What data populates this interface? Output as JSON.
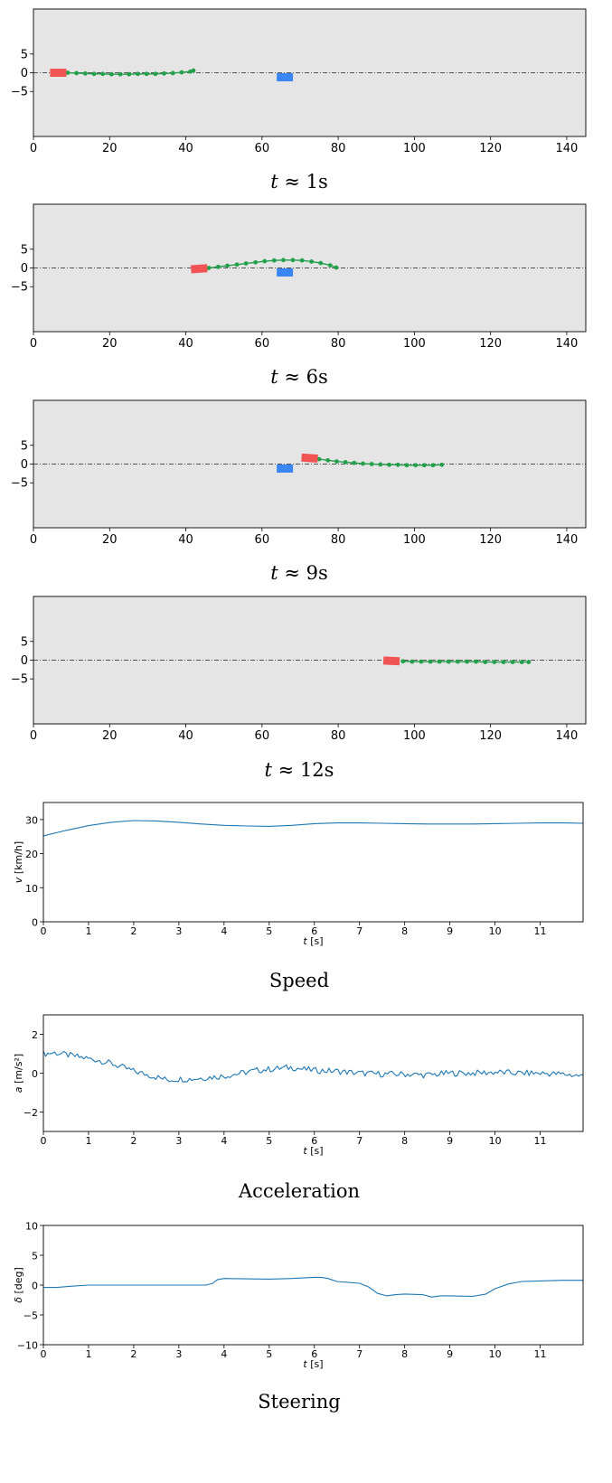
{
  "chart_data": [
    {
      "type": "scatter",
      "caption": "t ≈ 1s",
      "caption_var": "t",
      "caption_rest": " ≈ 1s",
      "xlim": [
        0,
        145
      ],
      "ylim": [
        -17,
        17
      ],
      "xticks": [
        0,
        20,
        40,
        60,
        80,
        100,
        120,
        140
      ],
      "yticks": [
        5,
        0,
        -5
      ],
      "ytick_labels": [
        "5",
        "0",
        "−5"
      ],
      "background_color": "#e5e5e5",
      "centerline_y": 0,
      "ego_vehicle": {
        "x": 6.5,
        "y": 0,
        "color": "#f05454"
      },
      "obstacle_vehicle": {
        "x": 66,
        "y": -1.2,
        "color": "#3a86f5"
      },
      "trajectory_color": "#22a04b",
      "trajectory": [
        [
          9,
          0
        ],
        [
          11.3,
          -0.1
        ],
        [
          13.6,
          -0.2
        ],
        [
          15.9,
          -0.3
        ],
        [
          18.2,
          -0.3
        ],
        [
          20.5,
          -0.4
        ],
        [
          22.8,
          -0.4
        ],
        [
          25.1,
          -0.4
        ],
        [
          27.4,
          -0.3
        ],
        [
          29.7,
          -0.3
        ],
        [
          32,
          -0.3
        ],
        [
          34.3,
          -0.2
        ],
        [
          36.6,
          -0.1
        ],
        [
          38.9,
          0.1
        ],
        [
          41.2,
          0.3
        ],
        [
          42,
          0.6
        ]
      ]
    },
    {
      "type": "scatter",
      "caption": "t ≈ 6s",
      "caption_var": "t",
      "caption_rest": " ≈ 6s",
      "xlim": [
        0,
        145
      ],
      "ylim": [
        -17,
        17
      ],
      "xticks": [
        0,
        20,
        40,
        60,
        80,
        100,
        120,
        140
      ],
      "yticks": [
        5,
        0,
        -5
      ],
      "ytick_labels": [
        "5",
        "0",
        "−5"
      ],
      "background_color": "#e5e5e5",
      "centerline_y": 0,
      "ego_vehicle": {
        "x": 43.5,
        "y": -0.2,
        "color": "#f05454"
      },
      "obstacle_vehicle": {
        "x": 66,
        "y": -1.2,
        "color": "#3a86f5"
      },
      "trajectory_color": "#22a04b",
      "trajectory": [
        [
          46,
          0
        ],
        [
          48.5,
          0.3
        ],
        [
          50.9,
          0.6
        ],
        [
          53.4,
          0.9
        ],
        [
          55.8,
          1.2
        ],
        [
          58.3,
          1.5
        ],
        [
          60.7,
          1.8
        ],
        [
          63.2,
          2
        ],
        [
          65.6,
          2.1
        ],
        [
          68.1,
          2.1
        ],
        [
          70.5,
          2
        ],
        [
          73,
          1.7
        ],
        [
          75.4,
          1.3
        ],
        [
          77.9,
          0.7
        ],
        [
          79.5,
          0.1
        ]
      ]
    },
    {
      "type": "scatter",
      "caption": "t ≈ 9s",
      "caption_var": "t",
      "caption_rest": " ≈ 9s",
      "xlim": [
        0,
        145
      ],
      "ylim": [
        -17,
        17
      ],
      "xticks": [
        0,
        20,
        40,
        60,
        80,
        100,
        120,
        140
      ],
      "yticks": [
        5,
        0,
        -5
      ],
      "ytick_labels": [
        "5",
        "0",
        "−5"
      ],
      "background_color": "#e5e5e5",
      "centerline_y": 0,
      "ego_vehicle": {
        "x": 72.5,
        "y": 1.6,
        "color": "#f05454"
      },
      "obstacle_vehicle": {
        "x": 66,
        "y": -1.2,
        "color": "#3a86f5"
      },
      "trajectory_color": "#22a04b",
      "trajectory": [
        [
          75,
          1.3
        ],
        [
          77.3,
          1
        ],
        [
          79.6,
          0.7
        ],
        [
          81.9,
          0.5
        ],
        [
          84.2,
          0.3
        ],
        [
          86.5,
          0.1
        ],
        [
          88.8,
          0
        ],
        [
          91.1,
          -0.1
        ],
        [
          93.4,
          -0.2
        ],
        [
          95.7,
          -0.2
        ],
        [
          98,
          -0.3
        ],
        [
          100.3,
          -0.3
        ],
        [
          102.6,
          -0.3
        ],
        [
          104.9,
          -0.3
        ],
        [
          107.2,
          -0.2
        ]
      ]
    },
    {
      "type": "scatter",
      "caption": "t ≈ 12s",
      "caption_var": "t",
      "caption_rest": " ≈ 12s",
      "xlim": [
        0,
        145
      ],
      "ylim": [
        -17,
        17
      ],
      "xticks": [
        0,
        20,
        40,
        60,
        80,
        100,
        120,
        140
      ],
      "yticks": [
        5,
        0,
        -5
      ],
      "ytick_labels": [
        "5",
        "0",
        "−5"
      ],
      "background_color": "#e5e5e5",
      "centerline_y": 0,
      "ego_vehicle": {
        "x": 94,
        "y": -0.2,
        "color": "#f05454"
      },
      "obstacle_vehicle": null,
      "trajectory_color": "#22a04b",
      "trajectory": [
        [
          97,
          -0.3
        ],
        [
          99.4,
          -0.4
        ],
        [
          101.8,
          -0.4
        ],
        [
          104.2,
          -0.4
        ],
        [
          106.6,
          -0.4
        ],
        [
          109,
          -0.4
        ],
        [
          111.4,
          -0.4
        ],
        [
          113.8,
          -0.4
        ],
        [
          116.2,
          -0.4
        ],
        [
          118.6,
          -0.5
        ],
        [
          121,
          -0.5
        ],
        [
          123.4,
          -0.5
        ],
        [
          125.8,
          -0.5
        ],
        [
          128.2,
          -0.5
        ],
        [
          130,
          -0.5
        ]
      ]
    },
    {
      "type": "line",
      "caption": "Speed",
      "xlabel_var": "t",
      "xlabel_rest": " [s]",
      "ylabel_var": "v",
      "ylabel_rest": " [km/h]",
      "xlim": [
        0,
        11.95
      ],
      "ylim": [
        0,
        35
      ],
      "xticks": [
        0,
        1,
        2,
        3,
        4,
        5,
        6,
        7,
        8,
        9,
        10,
        11
      ],
      "yticks": [
        0,
        10,
        20,
        30
      ],
      "ytick_labels": [
        "0",
        "10",
        "20",
        "30"
      ],
      "line_color": "#1f77b4",
      "noise": 0,
      "x": [
        0,
        0.5,
        1,
        1.5,
        2,
        2.5,
        3,
        3.5,
        4,
        4.5,
        5,
        5.5,
        6,
        6.5,
        7,
        7.5,
        8,
        8.5,
        9,
        9.5,
        10,
        10.5,
        11,
        11.5,
        11.95
      ],
      "y": [
        25.2,
        26.8,
        28.2,
        29.2,
        29.7,
        29.6,
        29.2,
        28.7,
        28.3,
        28.1,
        28.0,
        28.3,
        28.8,
        29.0,
        29.0,
        28.9,
        28.8,
        28.7,
        28.7,
        28.7,
        28.8,
        28.9,
        29.0,
        29.0,
        28.9
      ]
    },
    {
      "type": "line",
      "caption": "Acceleration",
      "xlabel_var": "t",
      "xlabel_rest": " [s]",
      "ylabel_var": "a",
      "ylabel_rest": " [m/s²]",
      "xlim": [
        0,
        11.95
      ],
      "ylim": [
        -3,
        3
      ],
      "xticks": [
        0,
        1,
        2,
        3,
        4,
        5,
        6,
        7,
        8,
        9,
        10,
        11
      ],
      "yticks": [
        2,
        0,
        -2
      ],
      "ytick_labels": [
        "2",
        "0",
        "−2"
      ],
      "line_color": "#1f77b4",
      "noise": 0.16,
      "x": [
        0,
        0.25,
        0.5,
        0.75,
        1,
        1.25,
        1.5,
        1.75,
        2,
        2.25,
        2.5,
        2.75,
        3,
        3.25,
        3.5,
        3.75,
        4,
        4.25,
        4.5,
        4.75,
        5,
        5.25,
        5.5,
        5.75,
        6,
        6.5,
        7,
        7.5,
        8,
        8.5,
        9,
        9.5,
        10,
        10.5,
        11,
        11.5,
        11.95
      ],
      "y": [
        1.0,
        1.05,
        0.95,
        0.85,
        0.75,
        0.65,
        0.5,
        0.3,
        0.1,
        -0.05,
        -0.2,
        -0.35,
        -0.3,
        -0.3,
        -0.25,
        -0.2,
        -0.15,
        -0.05,
        0.05,
        0.15,
        0.2,
        0.25,
        0.3,
        0.2,
        0.15,
        0.1,
        0.0,
        -0.05,
        -0.05,
        -0.1,
        0.0,
        0.0,
        0.05,
        0.0,
        0.0,
        -0.05,
        -0.15
      ]
    },
    {
      "type": "line",
      "caption": "Steering",
      "xlabel_var": "t",
      "xlabel_rest": " [s]",
      "ylabel_var": "δ",
      "ylabel_rest": " [deg]",
      "xlim": [
        0,
        11.95
      ],
      "ylim": [
        -10,
        10
      ],
      "xticks": [
        0,
        1,
        2,
        3,
        4,
        5,
        6,
        7,
        8,
        9,
        10,
        11
      ],
      "yticks": [
        10,
        5,
        0,
        -5,
        -10
      ],
      "ytick_labels": [
        "10",
        "5",
        "0",
        "−5",
        "−10"
      ],
      "line_color": "#1f77b4",
      "noise": 0,
      "x": [
        0,
        0.3,
        0.6,
        1,
        2,
        3,
        3.6,
        3.75,
        3.85,
        4.0,
        5,
        5.5,
        6,
        6.15,
        6.3,
        6.5,
        7,
        7.2,
        7.4,
        7.6,
        7.8,
        8,
        8.4,
        8.6,
        8.8,
        9,
        9.5,
        9.8,
        10,
        10.3,
        10.6,
        11,
        11.5,
        11.95
      ],
      "y": [
        -0.4,
        -0.4,
        -0.2,
        0,
        0,
        0,
        0,
        0.3,
        0.9,
        1.1,
        1.0,
        1.1,
        1.3,
        1.3,
        1.1,
        0.6,
        0.3,
        -0.3,
        -1.4,
        -1.8,
        -1.6,
        -1.5,
        -1.6,
        -2.0,
        -1.8,
        -1.8,
        -1.9,
        -1.5,
        -0.6,
        0.2,
        0.6,
        0.7,
        0.8,
        0.8
      ]
    }
  ]
}
